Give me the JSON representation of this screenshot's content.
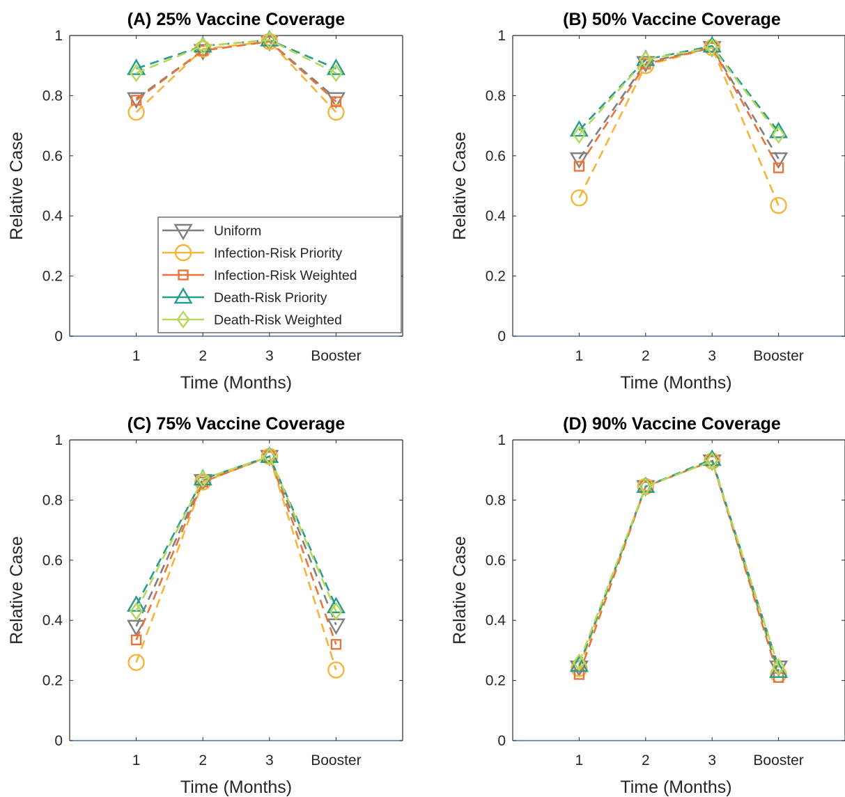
{
  "chart_data": [
    {
      "type": "line",
      "title": "(A) 25% Vaccine Coverage",
      "xlabel": "Time (Months)",
      "ylabel": "Relative Case",
      "categories": [
        "1",
        "2",
        "3",
        "Booster"
      ],
      "ylim": [
        0,
        1
      ],
      "yticks": [
        "0",
        "0.2",
        "0.4",
        "0.6",
        "0.8",
        "1"
      ],
      "grid": false,
      "legend": "bottom-right",
      "series": [
        {
          "name": "Uniform",
          "values": [
            0.79,
            0.95,
            0.98,
            0.79
          ]
        },
        {
          "name": "Infection-Risk Priority",
          "values": [
            0.745,
            0.955,
            0.98,
            0.745
          ]
        },
        {
          "name": "Infection-Risk Weighted",
          "values": [
            0.785,
            0.95,
            0.98,
            0.78
          ]
        },
        {
          "name": "Death-Risk Priority",
          "values": [
            0.89,
            0.965,
            0.985,
            0.89
          ]
        },
        {
          "name": "Death-Risk Weighted",
          "values": [
            0.875,
            0.965,
            0.985,
            0.875
          ]
        }
      ]
    },
    {
      "type": "line",
      "title": "(B) 50% Vaccine Coverage",
      "xlabel": "Time (Months)",
      "ylabel": "Relative Case",
      "categories": [
        "1",
        "2",
        "3",
        "Booster"
      ],
      "ylim": [
        0,
        1
      ],
      "yticks": [
        "0",
        "0.2",
        "0.4",
        "0.6",
        "0.8",
        "1"
      ],
      "grid": false,
      "legend": "",
      "series": [
        {
          "name": "Uniform",
          "values": [
            0.59,
            0.91,
            0.96,
            0.59
          ]
        },
        {
          "name": "Infection-Risk Priority",
          "values": [
            0.46,
            0.9,
            0.96,
            0.435
          ]
        },
        {
          "name": "Infection-Risk Weighted",
          "values": [
            0.565,
            0.905,
            0.96,
            0.56
          ]
        },
        {
          "name": "Death-Risk Priority",
          "values": [
            0.685,
            0.92,
            0.965,
            0.68
          ]
        },
        {
          "name": "Death-Risk Weighted",
          "values": [
            0.67,
            0.92,
            0.96,
            0.67
          ]
        }
      ]
    },
    {
      "type": "line",
      "title": "(C) 75% Vaccine Coverage",
      "xlabel": "Time (Months)",
      "ylabel": "Relative Case",
      "categories": [
        "1",
        "2",
        "3",
        "Booster"
      ],
      "ylim": [
        0,
        1
      ],
      "yticks": [
        "0",
        "0.2",
        "0.4",
        "0.6",
        "0.8",
        "1"
      ],
      "grid": false,
      "legend": "",
      "series": [
        {
          "name": "Uniform",
          "values": [
            0.38,
            0.865,
            0.945,
            0.385
          ]
        },
        {
          "name": "Infection-Risk Priority",
          "values": [
            0.26,
            0.86,
            0.945,
            0.235
          ]
        },
        {
          "name": "Infection-Risk Weighted",
          "values": [
            0.335,
            0.86,
            0.945,
            0.32
          ]
        },
        {
          "name": "Death-Risk Priority",
          "values": [
            0.45,
            0.87,
            0.945,
            0.445
          ]
        },
        {
          "name": "Death-Risk Weighted",
          "values": [
            0.43,
            0.87,
            0.945,
            0.43
          ]
        }
      ]
    },
    {
      "type": "line",
      "title": "(D) 90% Vaccine Coverage",
      "xlabel": "Time (Months)",
      "ylabel": "Relative Case",
      "categories": [
        "1",
        "2",
        "3",
        "Booster"
      ],
      "ylim": [
        0,
        1
      ],
      "yticks": [
        "0",
        "0.2",
        "0.4",
        "0.6",
        "0.8",
        "1"
      ],
      "grid": false,
      "legend": "",
      "series": [
        {
          "name": "Uniform",
          "values": [
            0.245,
            0.845,
            0.93,
            0.245
          ]
        },
        {
          "name": "Infection-Risk Priority",
          "values": [
            0.24,
            0.845,
            0.93,
            0.22
          ]
        },
        {
          "name": "Infection-Risk Weighted",
          "values": [
            0.22,
            0.845,
            0.93,
            0.21
          ]
        },
        {
          "name": "Death-Risk Priority",
          "values": [
            0.25,
            0.845,
            0.935,
            0.23
          ]
        },
        {
          "name": "Death-Risk Weighted",
          "values": [
            0.26,
            0.845,
            0.93,
            0.245
          ]
        }
      ]
    }
  ],
  "series_style": [
    {
      "name": "Uniform",
      "color": "#7f7f7f",
      "marker": "triangle-down"
    },
    {
      "name": "Infection-Risk Priority",
      "color": "#f5b43c",
      "marker": "circle"
    },
    {
      "name": "Infection-Risk Weighted",
      "color": "#e8743b",
      "marker": "square"
    },
    {
      "name": "Death-Risk Priority",
      "color": "#269b8e",
      "marker": "triangle-up"
    },
    {
      "name": "Death-Risk Weighted",
      "color": "#b4d85a",
      "marker": "diamond"
    }
  ],
  "colors": {
    "axis": "#262626",
    "axis_blue": "#4a6fa5",
    "text": "#262626"
  }
}
